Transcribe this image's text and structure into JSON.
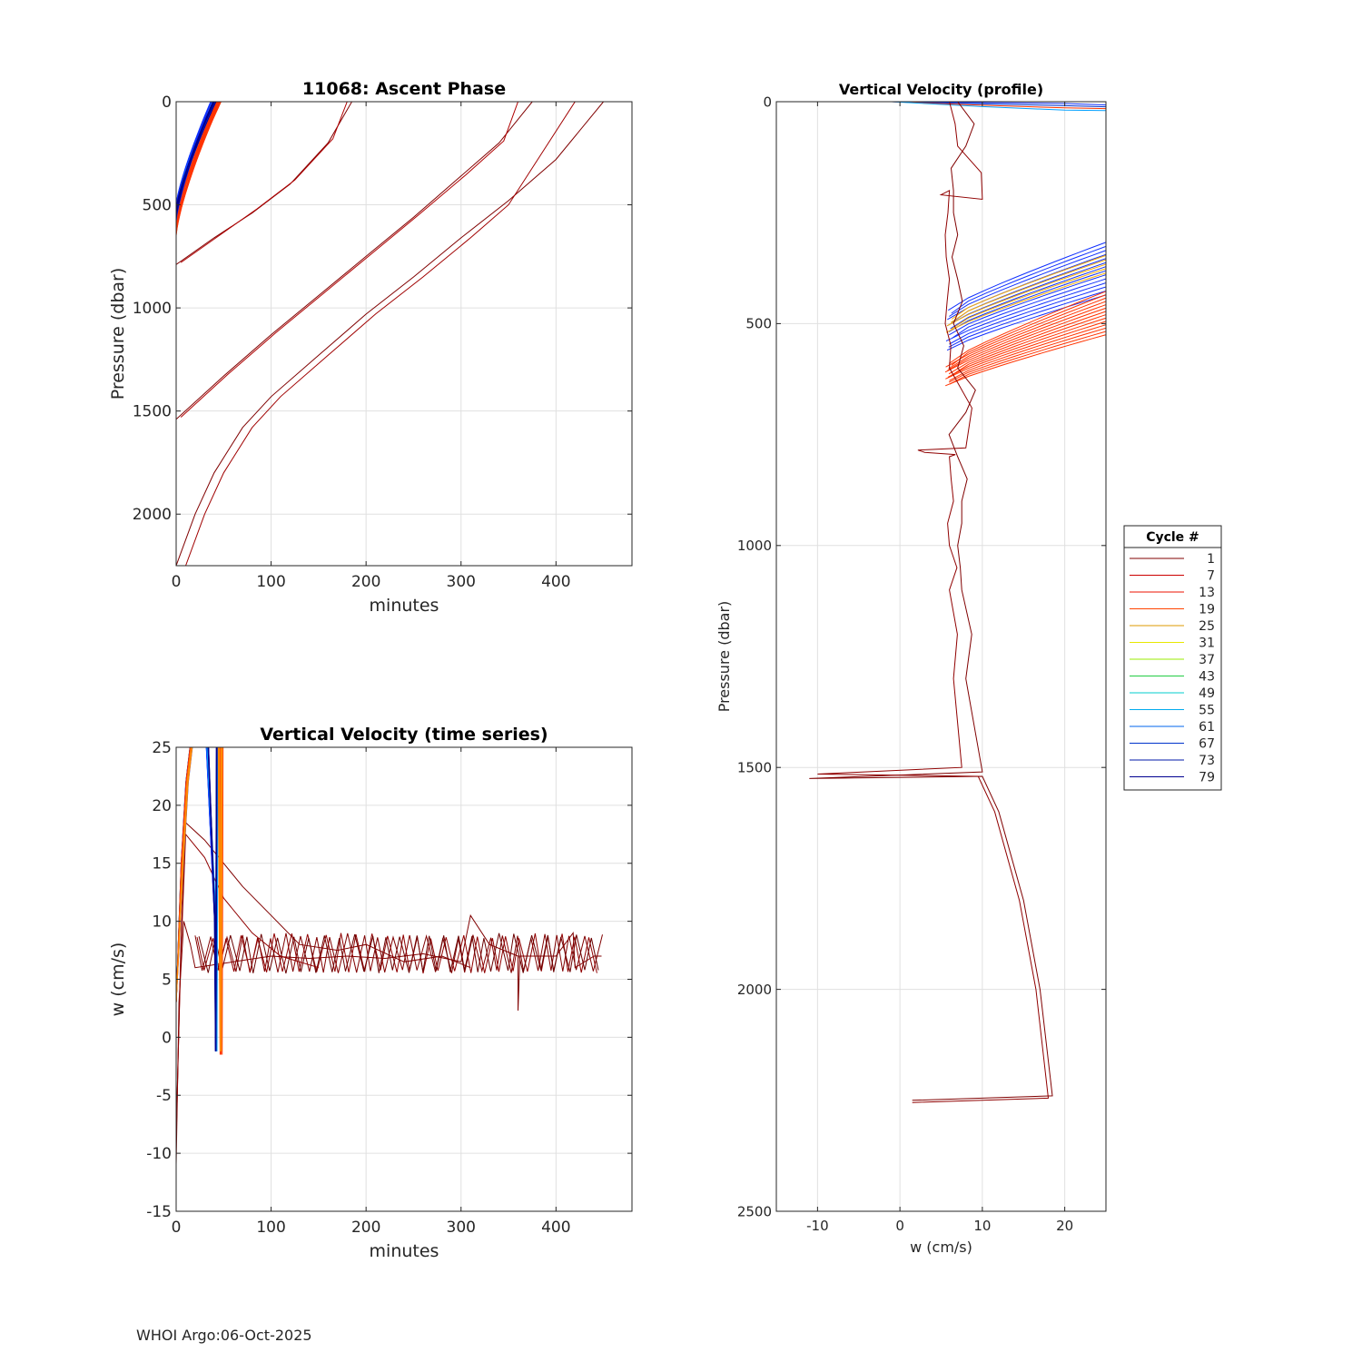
{
  "chart_data": [
    {
      "id": "ascent",
      "type": "line",
      "title": "11068: Ascent Phase",
      "xlabel": "minutes",
      "ylabel": "Pressure (dbar)",
      "xlim": [
        0,
        480
      ],
      "ylim": [
        2250,
        0
      ],
      "y_reversed": true,
      "xticks": [
        0,
        100,
        200,
        300,
        400
      ],
      "yticks": [
        0,
        500,
        1000,
        1500,
        2000
      ],
      "grid": true,
      "series": [
        {
          "cycle": 1,
          "color": "#800000",
          "points": [
            [
              0,
              2250
            ],
            [
              20,
              2000
            ],
            [
              40,
              1800
            ],
            [
              70,
              1580
            ],
            [
              100,
              1430
            ],
            [
              150,
              1230
            ],
            [
              200,
              1030
            ],
            [
              250,
              850
            ],
            [
              300,
              660
            ],
            [
              350,
              480
            ],
            [
              400,
              280
            ],
            [
              450,
              0
            ]
          ]
        },
        {
          "cycle": 1,
          "color": "#a00000",
          "points": [
            [
              10,
              2250
            ],
            [
              30,
              2000
            ],
            [
              50,
              1800
            ],
            [
              80,
              1580
            ],
            [
              110,
              1430
            ],
            [
              160,
              1230
            ],
            [
              210,
              1030
            ],
            [
              260,
              850
            ],
            [
              310,
              660
            ],
            [
              350,
              500
            ],
            [
              420,
              0
            ]
          ]
        },
        {
          "cycle": 7,
          "color": "#800000",
          "points": [
            [
              0,
              1540
            ],
            [
              50,
              1330
            ],
            [
              100,
              1130
            ],
            [
              150,
              940
            ],
            [
              200,
              750
            ],
            [
              250,
              560
            ],
            [
              300,
              360
            ],
            [
              340,
              200
            ],
            [
              375,
              0
            ]
          ]
        },
        {
          "cycle": 7,
          "color": "#b00000",
          "points": [
            [
              5,
              1530
            ],
            [
              55,
              1320
            ],
            [
              105,
              1120
            ],
            [
              155,
              930
            ],
            [
              205,
              740
            ],
            [
              255,
              550
            ],
            [
              305,
              355
            ],
            [
              345,
              190
            ],
            [
              360,
              0
            ]
          ]
        },
        {
          "cycle": 13,
          "color": "#800000",
          "points": [
            [
              0,
              790
            ],
            [
              40,
              660
            ],
            [
              80,
              540
            ],
            [
              120,
              400
            ],
            [
              160,
              200
            ],
            [
              185,
              0
            ]
          ]
        },
        {
          "cycle": 13,
          "color": "#b00000",
          "points": [
            [
              5,
              780
            ],
            [
              45,
              650
            ],
            [
              85,
              520
            ],
            [
              125,
              380
            ],
            [
              165,
              180
            ],
            [
              180,
              0
            ]
          ]
        }
      ],
      "bundles": [
        {
          "color": "#ff3300",
          "count": 14,
          "start_y": [
            560,
            650
          ],
          "end_x": [
            42,
            48
          ]
        },
        {
          "color": "#00a0ff",
          "count": 6,
          "start_y": [
            500,
            560
          ],
          "end_x": [
            36,
            42
          ]
        },
        {
          "color": "#1030ff",
          "count": 10,
          "start_y": [
            500,
            580
          ],
          "end_x": [
            36,
            42
          ]
        },
        {
          "color": "#000090",
          "count": 6,
          "start_y": [
            520,
            570
          ],
          "end_x": [
            38,
            42
          ]
        }
      ]
    },
    {
      "id": "ts",
      "type": "line",
      "title": "Vertical Velocity (time series)",
      "xlabel": "minutes",
      "ylabel": "w (cm/s)",
      "xlim": [
        0,
        480
      ],
      "ylim": [
        -15,
        25
      ],
      "xticks": [
        0,
        100,
        200,
        300,
        400
      ],
      "yticks": [
        -15,
        -10,
        -5,
        0,
        5,
        10,
        15,
        20,
        25
      ],
      "grid": true,
      "series": [
        {
          "name": "1",
          "color": "#800000",
          "points": [
            [
              0,
              -11
            ],
            [
              3,
              3
            ],
            [
              8,
              10
            ],
            [
              15,
              8
            ],
            [
              20,
              6
            ],
            [
              60,
              6.5
            ],
            [
              100,
              7
            ],
            [
              140,
              6.8
            ],
            [
              180,
              7
            ],
            [
              220,
              6.8
            ],
            [
              260,
              7.2
            ],
            [
              300,
              6.5
            ],
            [
              310,
              10.5
            ],
            [
              330,
              8
            ],
            [
              360,
              7
            ],
            [
              360,
              2.3
            ],
            [
              362,
              7
            ],
            [
              400,
              7
            ],
            [
              418,
              9
            ],
            [
              420,
              6
            ],
            [
              440,
              7
            ],
            [
              448,
              7
            ]
          ]
        },
        {
          "name": "7",
          "color": "#800000",
          "points": [
            [
              0,
              -9
            ],
            [
              5,
              8
            ],
            [
              10,
              18.5
            ],
            [
              30,
              17
            ],
            [
              50,
              15
            ],
            [
              70,
              13
            ],
            [
              100,
              10.5
            ],
            [
              130,
              8
            ],
            [
              170,
              7.5
            ],
            [
              200,
              8
            ],
            [
              240,
              6.5
            ],
            [
              280,
              7
            ],
            [
              310,
              6
            ]
          ]
        },
        {
          "name": "13",
          "color": "#900000",
          "points": [
            [
              0,
              -8
            ],
            [
              5,
              7
            ],
            [
              10,
              17.5
            ],
            [
              30,
              15.5
            ],
            [
              50,
              12
            ],
            [
              80,
              9
            ],
            [
              110,
              7
            ],
            [
              150,
              6
            ]
          ]
        }
      ],
      "zigzag": {
        "x_start": 20,
        "x_end": 450,
        "y_low": 5.8,
        "y_high": 8.5,
        "step": 6
      },
      "spikes": [
        {
          "color": "#1030ff",
          "x_up": 30,
          "x_down": 40,
          "y_min": -1.2
        },
        {
          "color": "#00a0ff",
          "x_up": 32,
          "x_down": 42,
          "y_min": -1.2
        },
        {
          "color": "#000090",
          "x_up": 33,
          "x_down": 41,
          "y_min": -1.2
        },
        {
          "color": "#ff3300",
          "x_up": 44,
          "x_down": 46,
          "y_min": -1.5
        },
        {
          "color": "#ff8800",
          "x_up": 43,
          "x_down": 45,
          "y_min": -1.2
        }
      ]
    },
    {
      "id": "profile",
      "type": "line",
      "title": "Vertical Velocity (profile)",
      "xlabel": "w (cm/s)",
      "ylabel": "Pressure (dbar)",
      "xlim": [
        -15,
        25
      ],
      "ylim": [
        2500,
        0
      ],
      "y_reversed": true,
      "xticks": [
        -10,
        0,
        10,
        20
      ],
      "yticks": [
        0,
        500,
        1000,
        1500,
        2000,
        2500
      ],
      "grid": true,
      "series": [
        {
          "name": "1",
          "color": "#800000",
          "points": [
            [
              1.5,
              2250
            ],
            [
              18.5,
              2240
            ],
            [
              17,
              2000
            ],
            [
              15,
              1800
            ],
            [
              12,
              1600
            ],
            [
              10,
              1520
            ],
            [
              -11,
              1525
            ],
            [
              10,
              1510
            ],
            [
              8,
              1300
            ],
            [
              7.5,
              1100
            ],
            [
              7,
              1000
            ],
            [
              7.5,
              900
            ],
            [
              7,
              800
            ],
            [
              8,
              700
            ],
            [
              7,
              600
            ],
            [
              6.5,
              500
            ],
            [
              7,
              400
            ],
            [
              7,
              300
            ],
            [
              6.5,
              200
            ],
            [
              8,
              100
            ],
            [
              7,
              0
            ]
          ]
        },
        {
          "name": "7",
          "color": "#900000",
          "points": [
            [
              1.5,
              2255
            ],
            [
              18,
              2245
            ],
            [
              16.5,
              2000
            ],
            [
              14.5,
              1800
            ],
            [
              11.5,
              1600
            ],
            [
              9.5,
              1520
            ],
            [
              -10,
              1515
            ],
            [
              7.5,
              1500
            ],
            [
              6.5,
              1300
            ],
            [
              6,
              1100
            ],
            [
              6,
              1000
            ],
            [
              6.5,
              900
            ],
            [
              6,
              800
            ],
            [
              3,
              790
            ],
            [
              8,
              780
            ],
            [
              6,
              600
            ],
            [
              5.5,
              500
            ],
            [
              6,
              400
            ],
            [
              5.5,
              300
            ],
            [
              6,
              200
            ],
            [
              10,
              220
            ],
            [
              7,
              100
            ],
            [
              6,
              0
            ]
          ]
        }
      ],
      "surface_bundles": [
        {
          "color": "#1030ff",
          "count": 14,
          "p_start": [
            470,
            560
          ],
          "p_end": [
            310,
            430
          ]
        },
        {
          "color": "#ffb000",
          "count": 5,
          "p_start": [
            490,
            520
          ],
          "p_end": [
            340,
            380
          ]
        },
        {
          "color": "#ff3300",
          "count": 14,
          "p_start": [
            590,
            640
          ],
          "p_end": [
            420,
            520
          ]
        }
      ],
      "legend": {
        "title": "Cycle #",
        "placement": "right",
        "entries": [
          {
            "label": "1",
            "color": "#800000"
          },
          {
            "label": "7",
            "color": "#cc0000"
          },
          {
            "label": "13",
            "color": "#ee1100"
          },
          {
            "label": "19",
            "color": "#ff4400"
          },
          {
            "label": "25",
            "color": "#dd9900"
          },
          {
            "label": "31",
            "color": "#e8e800"
          },
          {
            "label": "37",
            "color": "#99ee00"
          },
          {
            "label": "43",
            "color": "#22cc44"
          },
          {
            "label": "49",
            "color": "#00cccc"
          },
          {
            "label": "55",
            "color": "#00aaee"
          },
          {
            "label": "61",
            "color": "#0066ee"
          },
          {
            "label": "67",
            "color": "#0033cc"
          },
          {
            "label": "73",
            "color": "#001aaa"
          },
          {
            "label": "79",
            "color": "#000090"
          }
        ]
      }
    }
  ],
  "footer": {
    "text": "WHOI Argo:06-Oct-2025"
  }
}
